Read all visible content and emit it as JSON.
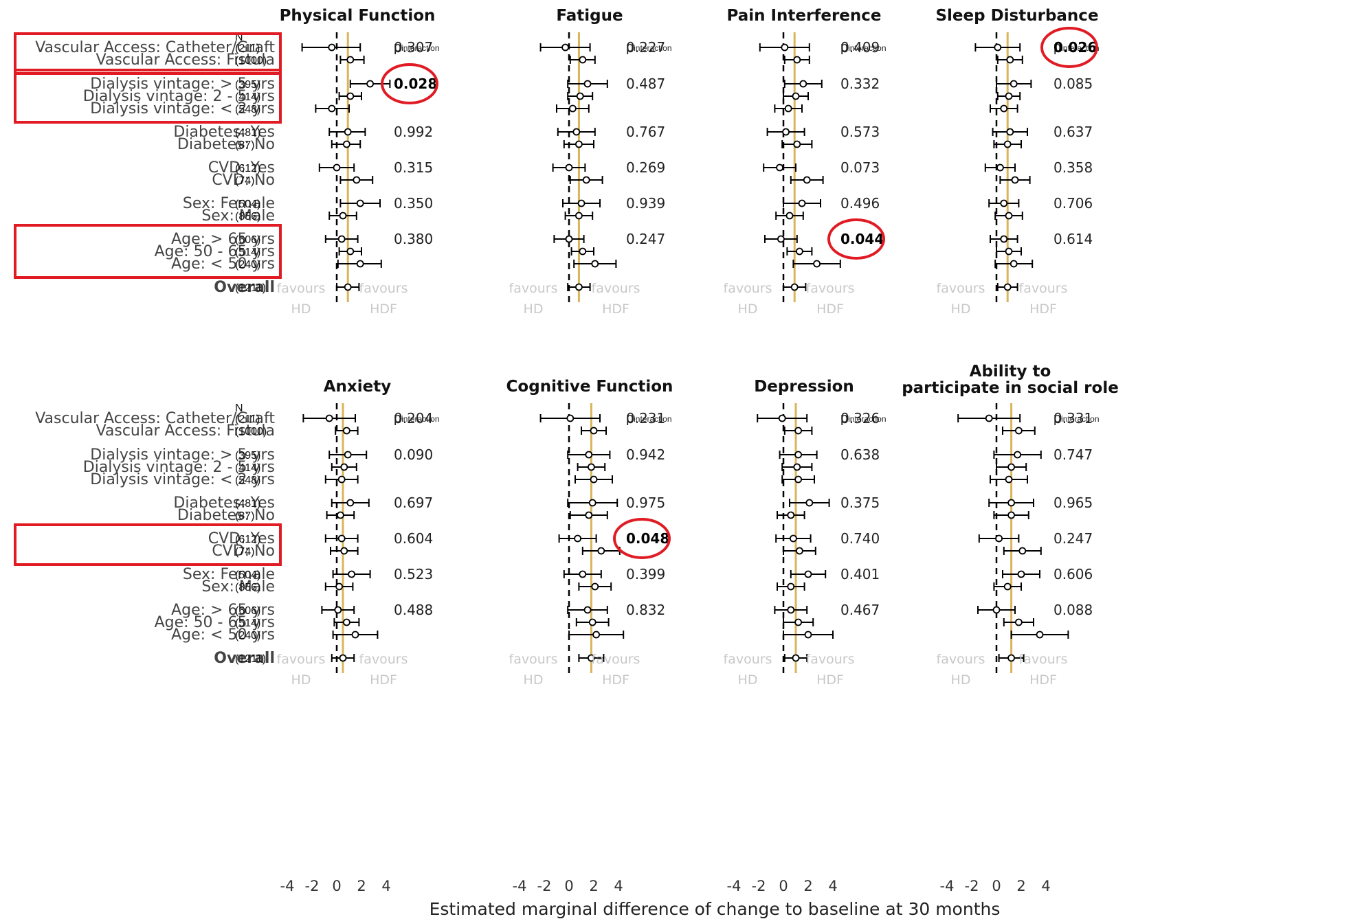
{
  "n_header": "N",
  "p_label_main": "p",
  "p_label_sub": "interaction",
  "favours_left": [
    "favours",
    "HD"
  ],
  "favours_right": [
    "favours",
    "HDF"
  ],
  "x_axis_label": "Estimated marginal difference of change to baseline at 30 months",
  "colors": {
    "reference_line": "#d9b45a",
    "highlight": "#e01b24",
    "points": "#000000"
  },
  "chart_data": {
    "type": "forest",
    "xlim": [
      -4,
      4
    ],
    "x_ticks": [
      -4,
      -2,
      0,
      2,
      4
    ],
    "rows": [
      {
        "label": "Vascular Access: Catheter/Graft",
        "n": "(211)"
      },
      {
        "label": "Vascular Access: Fistula",
        "n": "(1000)"
      },
      {
        "label": "Dialysis vintage: > 5 yrs",
        "n": "(395)"
      },
      {
        "label": "Dialysis vintage: 2 - 5 yrs",
        "n": "(414)"
      },
      {
        "label": "Dialysis vintage: < 2 yrs",
        "n": "(548)"
      },
      {
        "label": "Diabetes: Yes",
        "n": "(481)"
      },
      {
        "label": "Diabetes: No",
        "n": "(87)"
      },
      {
        "label": "CVD: Yes",
        "n": "(612)"
      },
      {
        "label": "CVD: No",
        "n": "(74)"
      },
      {
        "label": "Sex: Female",
        "n": "(504)"
      },
      {
        "label": "Sex: Male",
        "n": "(856)"
      },
      {
        "label": "Age: > 65 yrs",
        "n": "(606)"
      },
      {
        "label": "Age: 50 - 65 yrs",
        "n": "(514)"
      },
      {
        "label": "Age: < 50 yrs",
        "n": "(240)"
      },
      {
        "label": "Overall",
        "n": "(1211)"
      }
    ],
    "panels": [
      {
        "title": "Physical Function",
        "estimates": [
          [
            -0.4,
            -2.8,
            1.9
          ],
          [
            1.1,
            0.3,
            2.2
          ],
          [
            2.7,
            1.1,
            4.3
          ],
          [
            1.1,
            0.2,
            2.0
          ],
          [
            -0.4,
            -1.7,
            1.0
          ],
          [
            0.9,
            -0.6,
            2.3
          ],
          [
            0.8,
            -0.4,
            1.9
          ],
          [
            0.0,
            -1.4,
            1.4
          ],
          [
            1.6,
            0.3,
            2.9
          ],
          [
            1.9,
            0.3,
            3.5
          ],
          [
            0.5,
            -0.6,
            1.6
          ],
          [
            0.4,
            -0.9,
            1.7
          ],
          [
            1.1,
            0.2,
            2.0
          ],
          [
            1.9,
            0.1,
            3.6
          ],
          [
            0.9,
            0.0,
            1.8
          ]
        ],
        "p_values": [
          "0.307",
          "0.028",
          "0.992",
          "0.315",
          "0.350",
          "0.380"
        ],
        "p_bold": [
          false,
          true,
          false,
          false,
          false,
          false
        ]
      },
      {
        "title": "Fatigue",
        "estimates": [
          [
            -0.3,
            -2.3,
            1.7
          ],
          [
            1.1,
            0.1,
            2.1
          ],
          [
            1.5,
            -0.1,
            3.1
          ],
          [
            0.9,
            -0.1,
            1.9
          ],
          [
            0.3,
            -1.0,
            1.6
          ],
          [
            0.6,
            -0.9,
            2.1
          ],
          [
            0.8,
            -0.4,
            2.0
          ],
          [
            0.0,
            -1.3,
            1.3
          ],
          [
            1.4,
            0.1,
            2.7
          ],
          [
            1.0,
            -0.5,
            2.5
          ],
          [
            0.8,
            -0.3,
            1.9
          ],
          [
            0.0,
            -1.2,
            1.2
          ],
          [
            1.1,
            0.2,
            2.0
          ],
          [
            2.1,
            0.4,
            3.8
          ],
          [
            0.8,
            -0.1,
            1.7
          ]
        ],
        "p_values": [
          "0.227",
          "0.487",
          "0.767",
          "0.269",
          "0.939",
          "0.247"
        ],
        "p_bold": [
          false,
          false,
          false,
          false,
          false,
          false
        ]
      },
      {
        "title": "Pain Interference",
        "estimates": [
          [
            0.1,
            -1.9,
            2.1
          ],
          [
            1.1,
            0.1,
            2.1
          ],
          [
            1.6,
            0.1,
            3.1
          ],
          [
            1.0,
            0.0,
            2.0
          ],
          [
            0.4,
            -0.7,
            1.5
          ],
          [
            0.2,
            -1.3,
            1.7
          ],
          [
            1.1,
            -0.1,
            2.3
          ],
          [
            -0.3,
            -1.6,
            1.0
          ],
          [
            1.9,
            0.6,
            3.2
          ],
          [
            1.5,
            0.0,
            3.0
          ],
          [
            0.5,
            -0.6,
            1.6
          ],
          [
            -0.2,
            -1.5,
            1.1
          ],
          [
            1.3,
            0.3,
            2.3
          ],
          [
            2.7,
            0.8,
            4.6
          ],
          [
            0.9,
            0.0,
            1.8
          ]
        ],
        "p_values": [
          "0.409",
          "0.332",
          "0.573",
          "0.073",
          "0.496",
          "0.044"
        ],
        "p_bold": [
          false,
          false,
          false,
          false,
          false,
          true
        ]
      },
      {
        "title": "Sleep Disturbance",
        "estimates": [
          [
            0.1,
            -1.7,
            1.9
          ],
          [
            1.1,
            0.1,
            2.1
          ],
          [
            1.4,
            0.0,
            2.8
          ],
          [
            1.0,
            0.1,
            1.9
          ],
          [
            0.6,
            -0.5,
            1.7
          ],
          [
            1.1,
            -0.3,
            2.5
          ],
          [
            0.9,
            -0.2,
            2.0
          ],
          [
            0.3,
            -0.9,
            1.5
          ],
          [
            1.5,
            0.3,
            2.7
          ],
          [
            0.6,
            -0.6,
            1.8
          ],
          [
            1.0,
            -0.1,
            2.1
          ],
          [
            0.6,
            -0.5,
            1.7
          ],
          [
            1.0,
            0.0,
            2.0
          ],
          [
            1.4,
            -0.1,
            2.9
          ],
          [
            0.9,
            0.1,
            1.7
          ]
        ],
        "p_values": [
          "0.026",
          "0.085",
          "0.637",
          "0.358",
          "0.706",
          "0.614"
        ],
        "p_bold": [
          true,
          false,
          false,
          false,
          false,
          false
        ]
      },
      {
        "title": "Anxiety",
        "estimates": [
          [
            -0.6,
            -2.7,
            1.5
          ],
          [
            0.8,
            -0.1,
            1.7
          ],
          [
            0.9,
            -0.6,
            2.4
          ],
          [
            0.6,
            -0.4,
            1.6
          ],
          [
            0.4,
            -0.9,
            1.7
          ],
          [
            1.1,
            -0.4,
            2.6
          ],
          [
            0.3,
            -0.8,
            1.4
          ],
          [
            0.4,
            -0.9,
            1.7
          ],
          [
            0.6,
            -0.5,
            1.7
          ],
          [
            1.2,
            -0.3,
            2.7
          ],
          [
            0.2,
            -0.9,
            1.3
          ],
          [
            0.1,
            -1.2,
            1.4
          ],
          [
            0.8,
            -0.2,
            1.8
          ],
          [
            1.5,
            -0.3,
            3.3
          ],
          [
            0.5,
            -0.4,
            1.4
          ]
        ],
        "p_values": [
          "0.204",
          "0.090",
          "0.697",
          "0.604",
          "0.523",
          "0.488"
        ],
        "p_bold": [
          false,
          false,
          false,
          false,
          false,
          false
        ]
      },
      {
        "title": "Cognitive Function",
        "estimates": [
          [
            0.1,
            -2.3,
            2.5
          ],
          [
            2.0,
            1.0,
            3.0
          ],
          [
            1.6,
            -0.1,
            3.3
          ],
          [
            1.8,
            0.7,
            2.9
          ],
          [
            2.0,
            0.5,
            3.5
          ],
          [
            1.9,
            -0.1,
            3.9
          ],
          [
            1.6,
            0.1,
            3.1
          ],
          [
            0.7,
            -0.8,
            2.2
          ],
          [
            2.6,
            1.1,
            4.1
          ],
          [
            1.1,
            -0.4,
            2.6
          ],
          [
            2.1,
            0.8,
            3.4
          ],
          [
            1.5,
            -0.1,
            3.1
          ],
          [
            1.9,
            0.6,
            3.2
          ],
          [
            2.2,
            0.0,
            4.4
          ],
          [
            1.8,
            0.8,
            2.8
          ]
        ],
        "p_values": [
          "0.231",
          "0.942",
          "0.975",
          "0.048",
          "0.399",
          "0.832"
        ],
        "p_bold": [
          false,
          false,
          false,
          true,
          false,
          false
        ]
      },
      {
        "title": "Depression",
        "estimates": [
          [
            -0.1,
            -2.1,
            1.9
          ],
          [
            1.2,
            0.1,
            2.3
          ],
          [
            1.2,
            -0.3,
            2.7
          ],
          [
            1.1,
            -0.1,
            2.3
          ],
          [
            1.2,
            -0.1,
            2.5
          ],
          [
            2.1,
            0.5,
            3.7
          ],
          [
            0.6,
            -0.5,
            1.7
          ],
          [
            0.8,
            -0.6,
            2.2
          ],
          [
            1.3,
            0.0,
            2.6
          ],
          [
            2.0,
            0.6,
            3.4
          ],
          [
            0.6,
            -0.5,
            1.7
          ],
          [
            0.6,
            -0.7,
            1.9
          ],
          [
            1.2,
            0.0,
            2.4
          ],
          [
            2.0,
            0.0,
            4.0
          ],
          [
            1.0,
            0.1,
            1.9
          ]
        ],
        "p_values": [
          "0.326",
          "0.638",
          "0.375",
          "0.740",
          "0.401",
          "0.467"
        ],
        "p_bold": [
          false,
          false,
          false,
          false,
          false,
          false
        ]
      },
      {
        "title": "Ability to participate in social role",
        "estimates": [
          [
            -0.6,
            -3.1,
            1.9
          ],
          [
            1.8,
            0.5,
            3.1
          ],
          [
            1.7,
            -0.2,
            3.6
          ],
          [
            1.2,
            0.0,
            2.4
          ],
          [
            1.0,
            -0.5,
            2.5
          ],
          [
            1.2,
            -0.6,
            3.0
          ],
          [
            1.2,
            -0.2,
            2.6
          ],
          [
            0.2,
            -1.4,
            1.8
          ],
          [
            2.1,
            0.6,
            3.6
          ],
          [
            2.0,
            0.5,
            3.5
          ],
          [
            0.9,
            -0.2,
            2.0
          ],
          [
            0.0,
            -1.5,
            1.5
          ],
          [
            1.8,
            0.6,
            3.0
          ],
          [
            3.5,
            1.2,
            5.8
          ],
          [
            1.2,
            0.2,
            2.2
          ]
        ],
        "p_values": [
          "0.331",
          "0.747",
          "0.965",
          "0.247",
          "0.606",
          "0.088"
        ],
        "p_bold": [
          false,
          false,
          false,
          false,
          false,
          false
        ]
      }
    ],
    "highlighted_rows": {
      "top": [
        [
          0,
          1
        ],
        [
          2,
          4
        ],
        [
          11,
          13
        ]
      ],
      "bottom": [
        [
          7,
          8
        ]
      ]
    }
  }
}
